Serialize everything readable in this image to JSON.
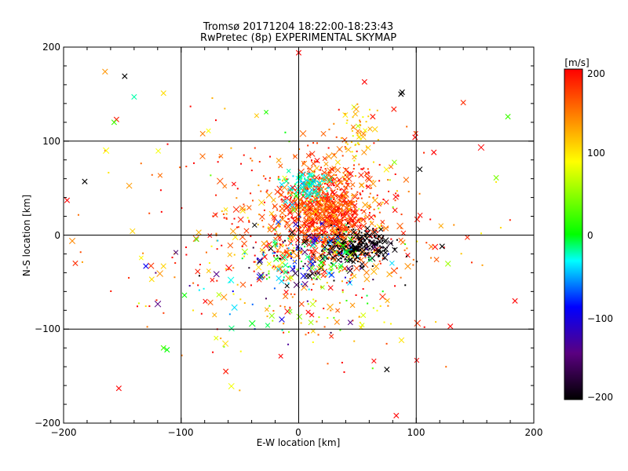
{
  "chart_data": {
    "type": "scatter",
    "title": "Tromsø 20171204 18:22:00-18:23:43",
    "subtitle": "RwPretec (8p) EXPERIMENTAL SKYMAP",
    "xlabel": "E-W location [km]",
    "ylabel": "N-S location [km]",
    "xlim": [
      -200,
      200
    ],
    "ylim": [
      -200,
      200
    ],
    "xticks": [
      "−200",
      "−100",
      "0",
      "100",
      "200"
    ],
    "yticks": [
      "−200",
      "−100",
      "0",
      "100",
      "200"
    ],
    "grid": true,
    "colorbar": {
      "label": "[m/s]",
      "range": [
        -200,
        200
      ],
      "ticks": [
        "200",
        "100",
        "0",
        "−100",
        "−200"
      ],
      "colors": [
        "#000000",
        "#5a0080",
        "#0000ff",
        "#00ffff",
        "#00ff00",
        "#ffff00",
        "#ff8000",
        "#ff0000"
      ]
    },
    "point_groups": [
      {
        "count": 900,
        "cx": 25,
        "cy": 25,
        "sx": 20,
        "sy": 25,
        "vmean": 170,
        "vsd": 30
      },
      {
        "count": 380,
        "cx": 0,
        "cy": 10,
        "sx": 55,
        "sy": 45,
        "vmean": 165,
        "vsd": 40
      },
      {
        "count": 150,
        "cx": -10,
        "cy": 0,
        "sx": 100,
        "sy": 80,
        "vmean": 140,
        "vsd": 60
      },
      {
        "count": 240,
        "cx": 50,
        "cy": -13,
        "sx": 15,
        "sy": 9,
        "vmean": -200,
        "vsd": 8
      },
      {
        "count": 220,
        "cx": 10,
        "cy": -22,
        "sx": 30,
        "sy": 17,
        "vmean": -40,
        "vsd": 110
      },
      {
        "count": 110,
        "cx": 8,
        "cy": 52,
        "sx": 9,
        "sy": 8,
        "vmean": -25,
        "vsd": 12
      },
      {
        "count": 55,
        "cx": 50,
        "cy": 108,
        "sx": 8,
        "sy": 14,
        "vmean": 110,
        "vsd": 25
      },
      {
        "count": 45,
        "cx": 20,
        "cy": -80,
        "sx": 30,
        "sy": 20,
        "vmean": 120,
        "vsd": 60
      },
      {
        "count": 40,
        "cx": -40,
        "cy": -60,
        "sx": 40,
        "sy": 30,
        "vmean": -60,
        "vsd": 80
      }
    ],
    "points": [
      {
        "x": -148,
        "y": 169,
        "v": -200
      },
      {
        "x": -155,
        "y": 123,
        "v": 190
      },
      {
        "x": -157,
        "y": 120,
        "v": 20
      },
      {
        "x": -140,
        "y": 147,
        "v": -20
      },
      {
        "x": -115,
        "y": 151,
        "v": 100
      },
      {
        "x": 88,
        "y": 152,
        "v": -200
      },
      {
        "x": 87,
        "y": 150,
        "v": -200
      },
      {
        "x": 178,
        "y": 126,
        "v": 20
      },
      {
        "x": 140,
        "y": 141,
        "v": 180
      },
      {
        "x": 168,
        "y": 61,
        "v": 40
      },
      {
        "x": -182,
        "y": 57,
        "v": -200
      },
      {
        "x": -197,
        "y": 37,
        "v": 200
      },
      {
        "x": -190,
        "y": -30,
        "v": 180
      },
      {
        "x": -153,
        "y": -163,
        "v": 200
      },
      {
        "x": -115,
        "y": -120,
        "v": 20
      },
      {
        "x": -112,
        "y": -122,
        "v": 0
      },
      {
        "x": -130,
        "y": -33,
        "v": -90
      },
      {
        "x": -125,
        "y": -47,
        "v": 100
      },
      {
        "x": -62,
        "y": -145,
        "v": 190
      },
      {
        "x": 0,
        "y": 194,
        "v": 200
      },
      {
        "x": 184,
        "y": -70,
        "v": 200
      },
      {
        "x": 129,
        "y": -97,
        "v": 200
      },
      {
        "x": 83,
        "y": -192,
        "v": 200
      },
      {
        "x": 103,
        "y": 70,
        "v": -200
      },
      {
        "x": 122,
        "y": -12,
        "v": -200
      },
      {
        "x": 75,
        "y": -143,
        "v": -200
      },
      {
        "x": 56,
        "y": 163,
        "v": 200
      },
      {
        "x": 63,
        "y": 126,
        "v": 190
      },
      {
        "x": 81,
        "y": 134,
        "v": 190
      },
      {
        "x": 99,
        "y": 104,
        "v": 200
      },
      {
        "x": 115,
        "y": 88,
        "v": 200
      }
    ]
  }
}
